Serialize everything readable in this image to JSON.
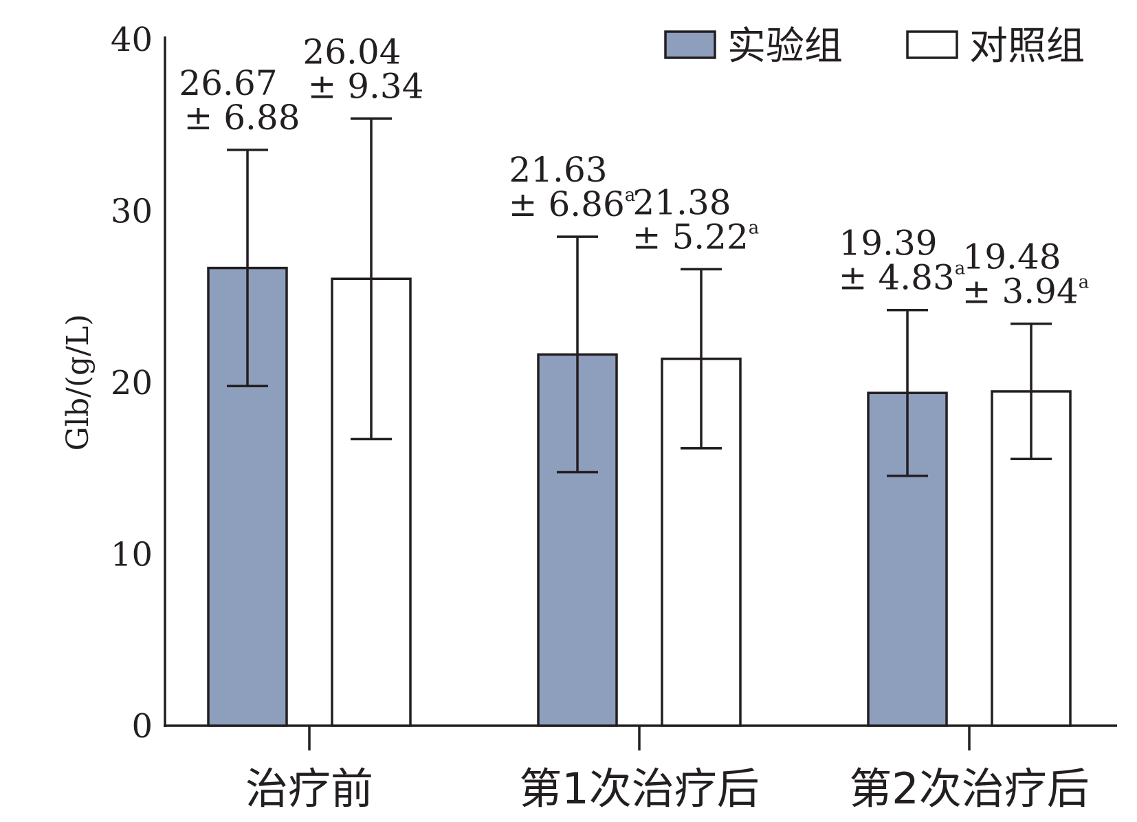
{
  "chart_data": {
    "type": "bar",
    "ylabel": "Glb/(g/L)",
    "ylim": [
      0,
      40
    ],
    "yticks": [
      0,
      10,
      20,
      30,
      40
    ],
    "categories": [
      "治疗前",
      "第1次治疗后",
      "第2次治疗后"
    ],
    "series": [
      {
        "name": "实验组",
        "color": "#8e9fbd",
        "values": [
          26.67,
          21.63,
          19.39
        ],
        "errors": [
          6.88,
          6.86,
          4.83
        ],
        "label_lines": [
          [
            "26.67",
            "± 6.88"
          ],
          [
            "21.63",
            "± 6.86"
          ],
          [
            "19.39",
            "± 4.83"
          ]
        ],
        "sig": [
          "",
          "a",
          "a"
        ]
      },
      {
        "name": "对照组",
        "color": "#ffffff",
        "values": [
          26.04,
          21.38,
          19.48
        ],
        "errors": [
          9.34,
          5.22,
          3.94
        ],
        "label_lines": [
          [
            "26.04",
            "± 9.34"
          ],
          [
            "21.38",
            "± 5.22"
          ],
          [
            "19.48",
            "± 3.94"
          ]
        ],
        "sig": [
          "",
          "a",
          "a"
        ]
      }
    ],
    "legend_position": "top-right",
    "grid": false
  }
}
